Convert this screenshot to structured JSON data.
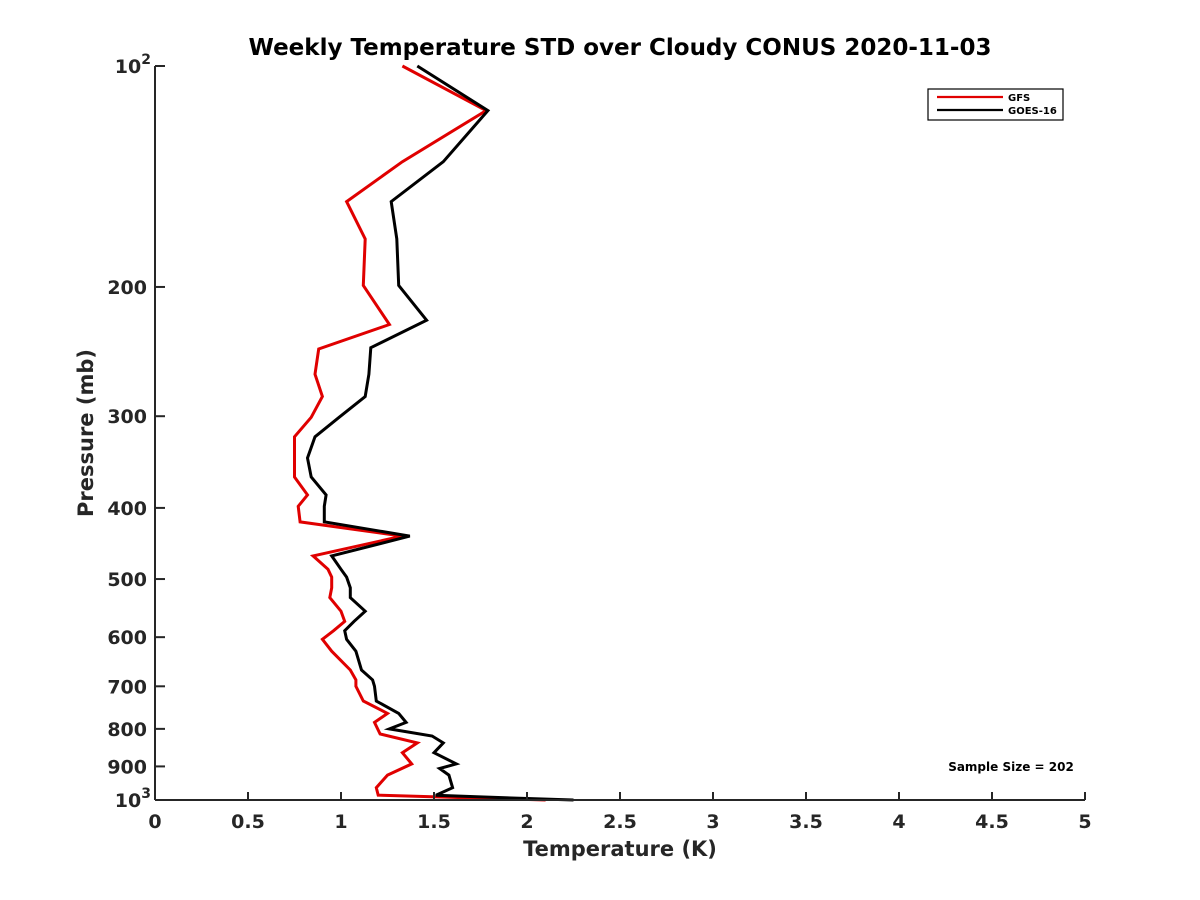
{
  "chart_data": {
    "type": "line",
    "title": "Weekly Temperature STD over Cloudy CONUS 2020-11-03",
    "xlabel": "Temperature (K)",
    "ylabel": "Pressure (mb)",
    "xlim": [
      0,
      5
    ],
    "ylim": [
      100,
      1000
    ],
    "y_scale": "log",
    "y_reversed": true,
    "grid": false,
    "legend_position": "top-right",
    "x_ticks": [
      {
        "value": 0,
        "label": "0"
      },
      {
        "value": 0.5,
        "label": "0.5"
      },
      {
        "value": 1,
        "label": "1"
      },
      {
        "value": 1.5,
        "label": "1.5"
      },
      {
        "value": 2,
        "label": "2"
      },
      {
        "value": 2.5,
        "label": "2.5"
      },
      {
        "value": 3,
        "label": "3"
      },
      {
        "value": 3.5,
        "label": "3.5"
      },
      {
        "value": 4,
        "label": "4"
      },
      {
        "value": 4.5,
        "label": "4.5"
      },
      {
        "value": 5,
        "label": "5"
      }
    ],
    "y_ticks": [
      {
        "value": 100,
        "base": "10",
        "exp": "2"
      },
      {
        "value": 200,
        "label": "200"
      },
      {
        "value": 300,
        "label": "300"
      },
      {
        "value": 400,
        "label": "400"
      },
      {
        "value": 500,
        "label": "500"
      },
      {
        "value": 600,
        "label": "600"
      },
      {
        "value": 700,
        "label": "700"
      },
      {
        "value": 800,
        "label": "800"
      },
      {
        "value": 900,
        "label": "900"
      },
      {
        "value": 1000,
        "base": "10",
        "exp": "3"
      }
    ],
    "series": [
      {
        "name": "GFS",
        "color": "#e00000",
        "points": [
          [
            1.33,
            100
          ],
          [
            1.78,
            115
          ],
          [
            1.33,
            135
          ],
          [
            1.03,
            153
          ],
          [
            1.13,
            172
          ],
          [
            1.12,
            199
          ],
          [
            1.26,
            225
          ],
          [
            0.88,
            243
          ],
          [
            0.86,
            263
          ],
          [
            0.9,
            282
          ],
          [
            0.84,
            301
          ],
          [
            0.75,
            320
          ],
          [
            0.75,
            342
          ],
          [
            0.75,
            363
          ],
          [
            0.82,
            384
          ],
          [
            0.77,
            398
          ],
          [
            0.78,
            418
          ],
          [
            1.33,
            437
          ],
          [
            0.85,
            465
          ],
          [
            0.93,
            485
          ],
          [
            0.95,
            497
          ],
          [
            0.95,
            514
          ],
          [
            0.94,
            530
          ],
          [
            1.0,
            553
          ],
          [
            1.02,
            571
          ],
          [
            0.96,
            588
          ],
          [
            0.9,
            604
          ],
          [
            0.95,
            627
          ],
          [
            1.05,
            665
          ],
          [
            1.08,
            686
          ],
          [
            1.08,
            700
          ],
          [
            1.12,
            733
          ],
          [
            1.25,
            762
          ],
          [
            1.18,
            784
          ],
          [
            1.21,
            813
          ],
          [
            1.41,
            836
          ],
          [
            1.33,
            862
          ],
          [
            1.38,
            893
          ],
          [
            1.25,
            925
          ],
          [
            1.19,
            962
          ],
          [
            1.2,
            985
          ],
          [
            2.1,
            1000
          ]
        ]
      },
      {
        "name": "GOES-16",
        "color": "#000000",
        "points": [
          [
            1.41,
            100
          ],
          [
            1.79,
            115
          ],
          [
            1.55,
            135
          ],
          [
            1.27,
            153
          ],
          [
            1.3,
            172
          ],
          [
            1.31,
            199
          ],
          [
            1.46,
            222
          ],
          [
            1.16,
            242
          ],
          [
            1.15,
            263
          ],
          [
            1.13,
            282
          ],
          [
            0.99,
            301
          ],
          [
            0.86,
            320
          ],
          [
            0.82,
            342
          ],
          [
            0.84,
            363
          ],
          [
            0.92,
            384
          ],
          [
            0.91,
            398
          ],
          [
            0.91,
            418
          ],
          [
            1.37,
            437
          ],
          [
            0.95,
            465
          ],
          [
            1.0,
            485
          ],
          [
            1.03,
            497
          ],
          [
            1.05,
            514
          ],
          [
            1.05,
            530
          ],
          [
            1.13,
            553
          ],
          [
            1.07,
            571
          ],
          [
            1.02,
            588
          ],
          [
            1.03,
            604
          ],
          [
            1.08,
            627
          ],
          [
            1.11,
            665
          ],
          [
            1.17,
            686
          ],
          [
            1.18,
            700
          ],
          [
            1.19,
            733
          ],
          [
            1.31,
            762
          ],
          [
            1.35,
            784
          ],
          [
            1.26,
            800
          ],
          [
            1.49,
            818
          ],
          [
            1.55,
            836
          ],
          [
            1.5,
            862
          ],
          [
            1.62,
            893
          ],
          [
            1.53,
            906
          ],
          [
            1.58,
            925
          ],
          [
            1.6,
            962
          ],
          [
            1.51,
            985
          ],
          [
            1.73,
            990
          ],
          [
            2.25,
            1000
          ]
        ]
      }
    ],
    "annotations": [
      {
        "text": "Sample Size = 202",
        "position": "bottom-right"
      }
    ]
  }
}
